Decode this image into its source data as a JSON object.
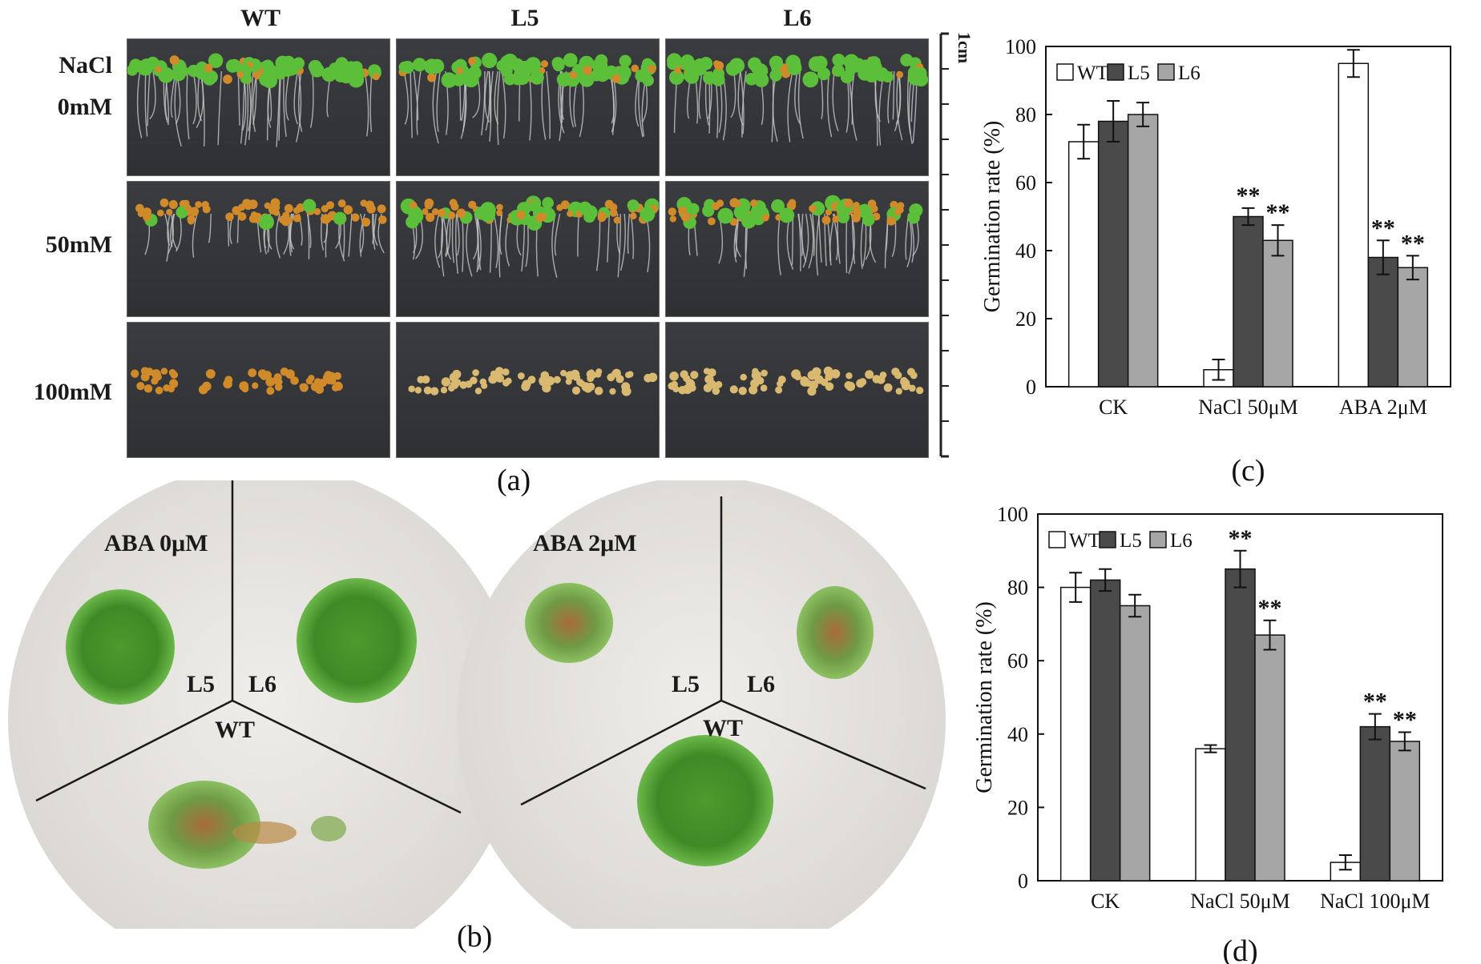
{
  "panel_a": {
    "letter": "(a)",
    "columns": [
      "WT",
      "L5",
      "L6"
    ],
    "rows": [
      {
        "label_line1": "NaCl",
        "label_line2": "0mM"
      },
      {
        "label_line1": "",
        "label_line2": "50mM"
      },
      {
        "label_line1": "",
        "label_line2": "100mM"
      }
    ],
    "scale_label": "1cm"
  },
  "panel_b": {
    "letter": "(b)",
    "plates": [
      {
        "condition": "ABA 0μM",
        "l5": "L5",
        "l6": "L6",
        "wt": "WT"
      },
      {
        "condition": "ABA 2μM",
        "l5": "L5",
        "l6": "L6",
        "wt": "WT"
      }
    ]
  },
  "colors": {
    "wt": "#ffffff",
    "l5": "#4a4a4a",
    "l6": "#a6a6a6",
    "seedling_green": "#5cbf3a",
    "seed_orange": "#d08a2a",
    "plate_bg": "#e6e4df"
  },
  "chart_data": [
    {
      "id": "c",
      "letter": "(c)",
      "type": "bar",
      "ylabel": "Germination rate (%)",
      "ylim": [
        0,
        100
      ],
      "yticks": [
        0,
        20,
        40,
        60,
        80,
        100
      ],
      "legend_position": "top-left",
      "categories": [
        "CK",
        "NaCl 50μM",
        "ABA 2μM"
      ],
      "series": [
        {
          "name": "WT",
          "values": [
            72,
            5,
            95
          ],
          "errors": [
            5,
            3,
            4
          ],
          "sig": [
            "",
            "",
            ""
          ]
        },
        {
          "name": "L5",
          "values": [
            78,
            50,
            38
          ],
          "errors": [
            6,
            2.5,
            5
          ],
          "sig": [
            "",
            "**",
            "**"
          ]
        },
        {
          "name": "L6",
          "values": [
            80,
            43,
            35
          ],
          "errors": [
            3.5,
            4.5,
            3.5
          ],
          "sig": [
            "",
            "**",
            "**"
          ]
        }
      ]
    },
    {
      "id": "d",
      "letter": "(d)",
      "type": "bar",
      "ylabel": "Germination rate (%)",
      "ylim": [
        0,
        100
      ],
      "yticks": [
        0,
        20,
        40,
        60,
        80,
        100
      ],
      "legend_position": "top-left",
      "categories": [
        "CK",
        "NaCl 50μM",
        "NaCl 100μM"
      ],
      "series": [
        {
          "name": "WT",
          "values": [
            80,
            36,
            5
          ],
          "errors": [
            4,
            1,
            2
          ],
          "sig": [
            "",
            "",
            ""
          ]
        },
        {
          "name": "L5",
          "values": [
            82,
            85,
            42
          ],
          "errors": [
            3,
            5,
            3.5
          ],
          "sig": [
            "",
            "**",
            "**"
          ]
        },
        {
          "name": "L6",
          "values": [
            75,
            67,
            38
          ],
          "errors": [
            3,
            4,
            2.5
          ],
          "sig": [
            "",
            "**",
            "**"
          ]
        }
      ]
    }
  ]
}
